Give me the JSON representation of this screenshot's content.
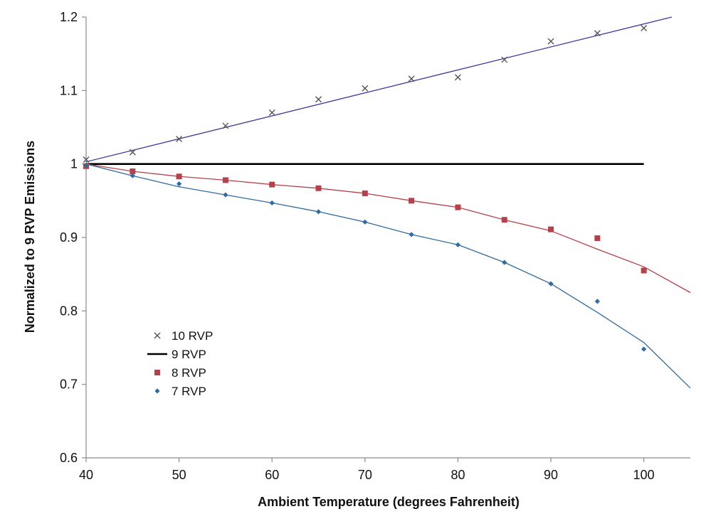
{
  "chart_data": {
    "type": "scatter",
    "title": "",
    "xlabel": "Ambient Temperature (degrees Fahrenheit)",
    "ylabel": "Normalized to 9 RVP Emissions",
    "xlim": [
      40,
      105
    ],
    "ylim": [
      0.6,
      1.2
    ],
    "xticks": [
      40,
      50,
      60,
      70,
      80,
      90,
      100
    ],
    "xtick_labels": [
      "40",
      "50",
      "60",
      "70",
      "80",
      "90",
      "100"
    ],
    "yticks": [
      0.6,
      0.7,
      0.8,
      0.9,
      1.0,
      1.1,
      1.2
    ],
    "ytick_labels": [
      "0.6",
      "0.7",
      "0.8",
      "0.9",
      "1",
      "1.1",
      "1.2"
    ],
    "grid": false,
    "legend_position": "lower-left",
    "series": [
      {
        "name": "10 RVP",
        "marker": "x",
        "color": "#555555",
        "line_color": "#3b3b9a",
        "x": [
          40,
          45,
          50,
          55,
          60,
          65,
          70,
          75,
          80,
          85,
          90,
          95,
          100
        ],
        "y": [
          1.006,
          1.016,
          1.034,
          1.052,
          1.07,
          1.088,
          1.103,
          1.116,
          1.118,
          1.142,
          1.167,
          1.178,
          1.185
        ],
        "fit": {
          "x": [
            40,
            103
          ],
          "y": [
            1.003,
            1.2
          ]
        }
      },
      {
        "name": "9 RVP",
        "marker": "line",
        "color": "#000000",
        "x": [
          40,
          100
        ],
        "y": [
          1.0,
          1.0
        ]
      },
      {
        "name": "8 RVP",
        "marker": "square",
        "color": "#b5414a",
        "line_color": "#b5414a",
        "x": [
          40,
          45,
          50,
          55,
          60,
          65,
          70,
          75,
          80,
          85,
          90,
          95,
          100
        ],
        "y": [
          0.997,
          0.99,
          0.983,
          0.978,
          0.972,
          0.967,
          0.96,
          0.95,
          0.941,
          0.924,
          0.911,
          0.899,
          0.855
        ],
        "fit": {
          "x": [
            40,
            45,
            50,
            55,
            60,
            65,
            70,
            75,
            80,
            85,
            90,
            95,
            100,
            105
          ],
          "y": [
            1.0,
            0.99,
            0.983,
            0.978,
            0.972,
            0.967,
            0.96,
            0.95,
            0.941,
            0.924,
            0.909,
            0.884,
            0.86,
            0.825
          ]
        }
      },
      {
        "name": "7 RVP",
        "marker": "diamond",
        "color": "#2f6aa0",
        "line_color": "#2f6aa0",
        "x": [
          40,
          45,
          50,
          55,
          60,
          65,
          70,
          75,
          80,
          85,
          90,
          95,
          100
        ],
        "y": [
          0.998,
          0.984,
          0.973,
          0.958,
          0.947,
          0.935,
          0.921,
          0.904,
          0.89,
          0.866,
          0.837,
          0.813,
          0.748
        ],
        "fit": {
          "x": [
            40,
            45,
            50,
            55,
            60,
            65,
            70,
            75,
            80,
            85,
            90,
            95,
            100,
            105
          ],
          "y": [
            1.0,
            0.984,
            0.969,
            0.958,
            0.947,
            0.935,
            0.921,
            0.904,
            0.89,
            0.866,
            0.837,
            0.798,
            0.757,
            0.695
          ]
        }
      }
    ]
  }
}
